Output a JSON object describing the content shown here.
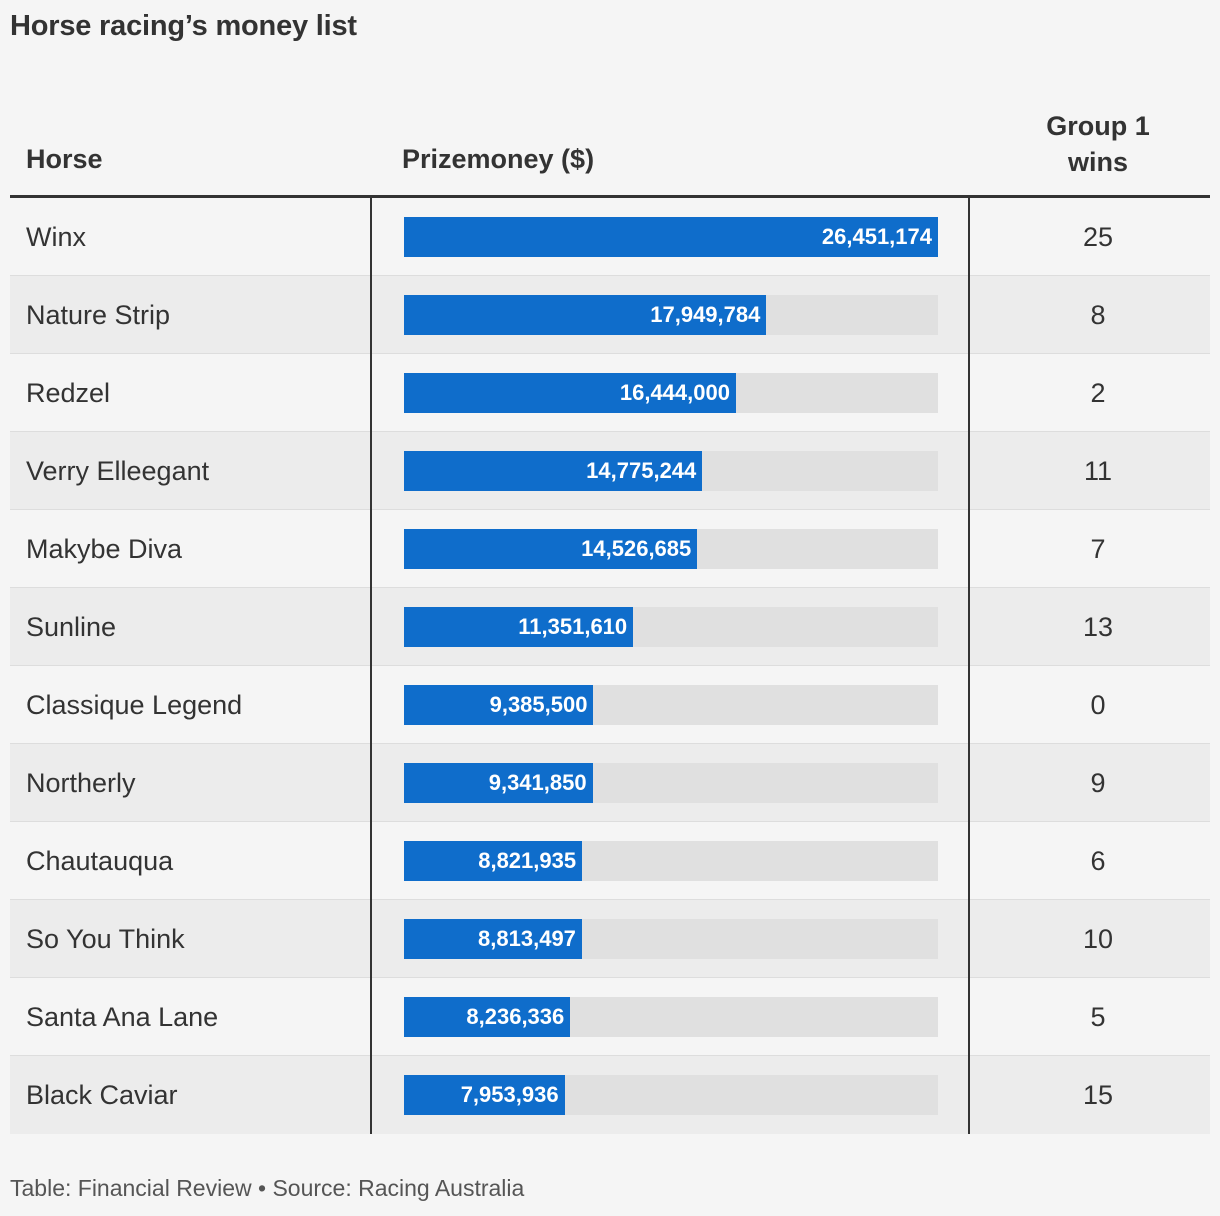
{
  "title": "Horse racing’s money list",
  "headers": {
    "horse": "Horse",
    "prizemoney": "Prizemoney ($)",
    "wins_line1": "Group 1",
    "wins_line2": "wins"
  },
  "colors": {
    "bar": "#0f6dcb",
    "track": "#e0e0e0",
    "shaded_row": "#ececec",
    "background": "#f5f5f5"
  },
  "chart_data": {
    "type": "table",
    "columns": [
      "Horse",
      "Prizemoney ($)",
      "Group 1 wins"
    ],
    "max_value": 26451174,
    "rows": [
      {
        "horse": "Winx",
        "prizemoney": 26451174,
        "prizemoney_label": "26,451,174",
        "wins": "25"
      },
      {
        "horse": "Nature Strip",
        "prizemoney": 17949784,
        "prizemoney_label": "17,949,784",
        "wins": "8"
      },
      {
        "horse": "Redzel",
        "prizemoney": 16444000,
        "prizemoney_label": "16,444,000",
        "wins": "2"
      },
      {
        "horse": "Verry Elleegant",
        "prizemoney": 14775244,
        "prizemoney_label": "14,775,244",
        "wins": "11"
      },
      {
        "horse": "Makybe Diva",
        "prizemoney": 14526685,
        "prizemoney_label": "14,526,685",
        "wins": "7"
      },
      {
        "horse": "Sunline",
        "prizemoney": 11351610,
        "prizemoney_label": "11,351,610",
        "wins": "13"
      },
      {
        "horse": "Classique Legend",
        "prizemoney": 9385500,
        "prizemoney_label": "9,385,500",
        "wins": "0"
      },
      {
        "horse": "Northerly",
        "prizemoney": 9341850,
        "prizemoney_label": "9,341,850",
        "wins": "9"
      },
      {
        "horse": "Chautauqua",
        "prizemoney": 8821935,
        "prizemoney_label": "8,821,935",
        "wins": "6"
      },
      {
        "horse": "So You Think",
        "prizemoney": 8813497,
        "prizemoney_label": "8,813,497",
        "wins": "10"
      },
      {
        "horse": "Santa Ana Lane",
        "prizemoney": 8236336,
        "prizemoney_label": "8,236,336",
        "wins": "5"
      },
      {
        "horse": "Black Caviar",
        "prizemoney": 7953936,
        "prizemoney_label": "7,953,936",
        "wins": "15"
      }
    ]
  },
  "footer": "Table: Financial Review • Source: Racing Australia"
}
